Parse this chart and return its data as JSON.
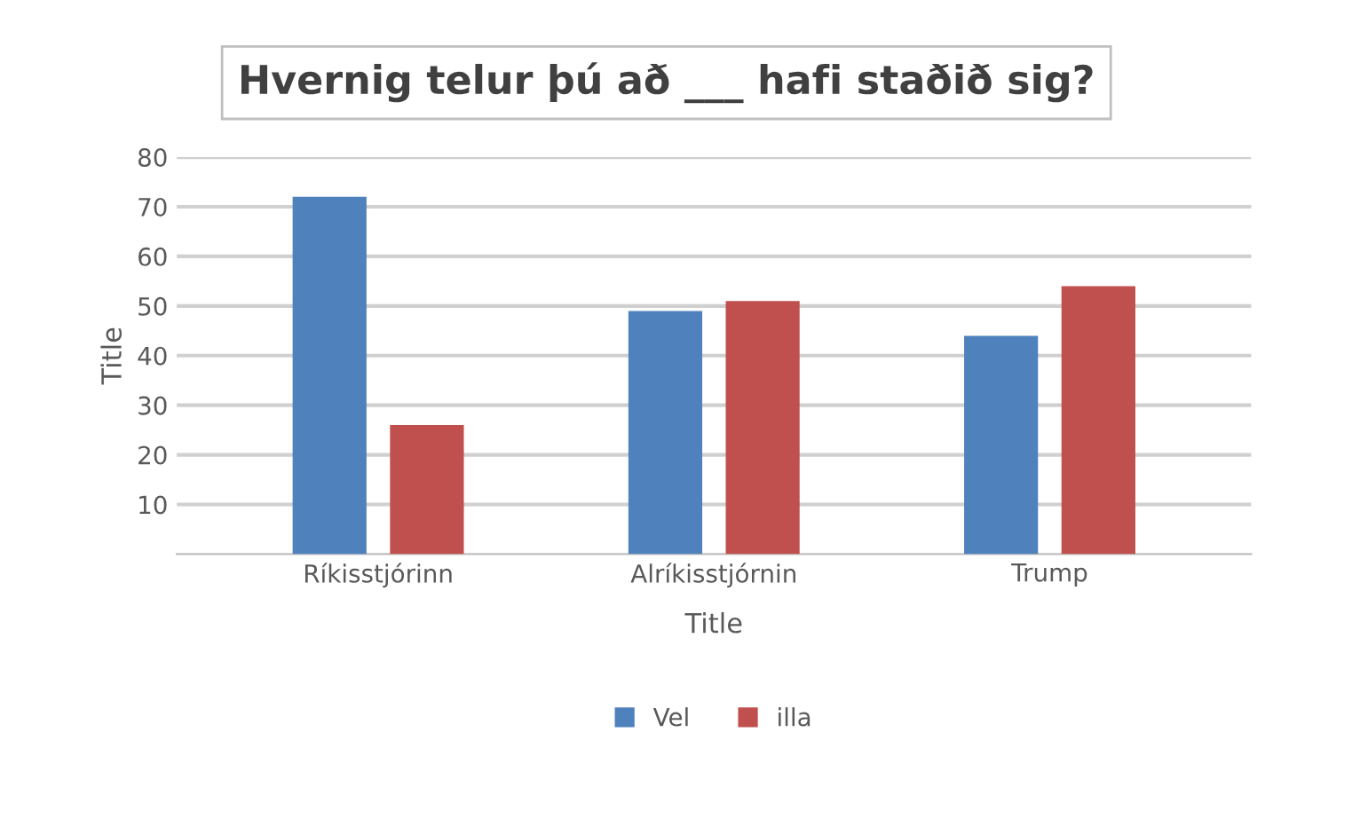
{
  "chart_data": {
    "type": "bar",
    "title": "Hvernig telur þú að ___ hafi staðið sig?",
    "xlabel": "Title",
    "ylabel": "Title",
    "categories": [
      "Ríkisstjórinn",
      "Alríkisstjórnin",
      "Trump"
    ],
    "series": [
      {
        "name": "Vel",
        "color": "#4f81bd",
        "values": [
          72,
          49,
          44
        ]
      },
      {
        "name": "illa",
        "color": "#c0504d",
        "values": [
          26,
          51,
          54
        ]
      }
    ],
    "ylim": [
      0,
      80
    ],
    "yticks": [
      10,
      20,
      30,
      40,
      50,
      60,
      70,
      80
    ],
    "grid": "y",
    "legend": "bottom"
  }
}
